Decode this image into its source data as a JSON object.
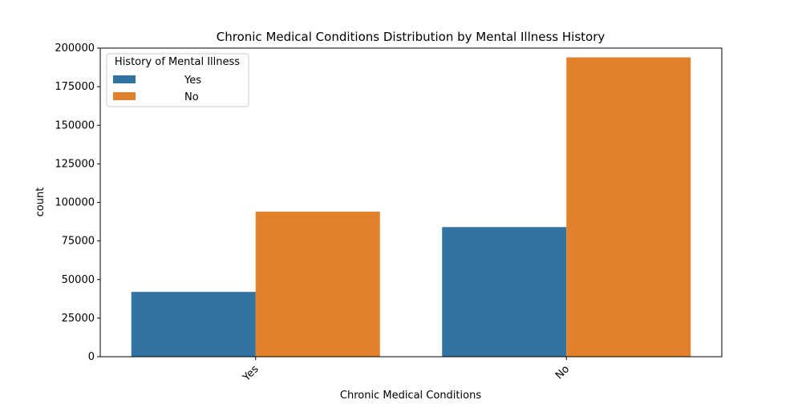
{
  "chart_data": {
    "type": "bar",
    "title": "Chronic Medical Conditions Distribution by Mental Illness History",
    "xlabel": "Chronic Medical Conditions",
    "ylabel": "count",
    "categories": [
      "Yes",
      "No"
    ],
    "series": [
      {
        "name": "Yes",
        "values": [
          42000,
          84000
        ],
        "color": "#3274a1"
      },
      {
        "name": "No",
        "values": [
          94000,
          194000
        ],
        "color": "#e1812c"
      }
    ],
    "ylim": [
      0,
      200000
    ],
    "yticks": [
      0,
      25000,
      50000,
      75000,
      100000,
      125000,
      150000,
      175000,
      200000
    ],
    "grid": false,
    "legend": {
      "title": "History of Mental Illness",
      "position": "top-left"
    },
    "x_tick_rotation": "45"
  }
}
